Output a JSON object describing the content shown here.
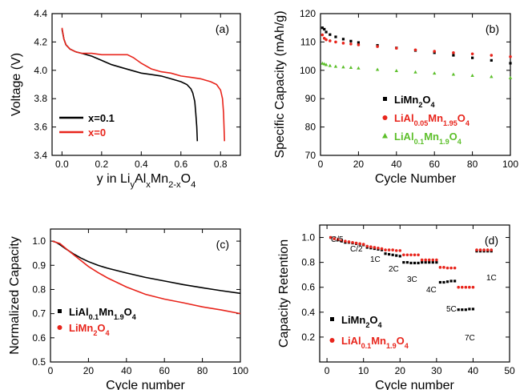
{
  "chart_data": [
    {
      "id": "a",
      "type": "line",
      "panel_label": "(a)",
      "xlabel": "y in Li",
      "xlabel_parts": {
        "li": "y",
        "al": "x",
        "mn": "2-x",
        "o": "4"
      },
      "ylabel": "Voltage (V)",
      "xlim": [
        -0.05,
        0.9
      ],
      "ylim": [
        3.4,
        4.4
      ],
      "xticks": [
        "0.0",
        "0.2",
        "0.4",
        "0.6",
        "0.8"
      ],
      "yticks": [
        "3.4",
        "3.6",
        "3.8",
        "4.0",
        "4.2",
        "4.4"
      ],
      "legend_position": "bottom-left",
      "series": [
        {
          "name": "x=0.1",
          "color": "#000000",
          "x": [
            0.0,
            0.01,
            0.02,
            0.04,
            0.07,
            0.1,
            0.15,
            0.2,
            0.25,
            0.3,
            0.35,
            0.4,
            0.45,
            0.5,
            0.55,
            0.6,
            0.63,
            0.65,
            0.66,
            0.67,
            0.675,
            0.68,
            0.683
          ],
          "y": [
            4.29,
            4.22,
            4.18,
            4.15,
            4.13,
            4.12,
            4.1,
            4.07,
            4.04,
            4.02,
            4.0,
            3.98,
            3.97,
            3.96,
            3.94,
            3.92,
            3.9,
            3.87,
            3.84,
            3.78,
            3.7,
            3.6,
            3.5
          ]
        },
        {
          "name": "x=0",
          "color": "#e8251c",
          "x": [
            0.0,
            0.01,
            0.02,
            0.04,
            0.07,
            0.1,
            0.15,
            0.2,
            0.25,
            0.3,
            0.33,
            0.36,
            0.4,
            0.45,
            0.5,
            0.55,
            0.6,
            0.65,
            0.7,
            0.75,
            0.78,
            0.8,
            0.81,
            0.815,
            0.82
          ],
          "y": [
            4.3,
            4.22,
            4.18,
            4.15,
            4.13,
            4.12,
            4.12,
            4.11,
            4.11,
            4.11,
            4.11,
            4.09,
            4.05,
            4.01,
            3.99,
            3.98,
            3.96,
            3.95,
            3.94,
            3.92,
            3.9,
            3.86,
            3.8,
            3.7,
            3.5
          ]
        }
      ]
    },
    {
      "id": "b",
      "type": "scatter",
      "panel_label": "(b)",
      "xlabel": "Cycle Number",
      "ylabel": "Specific Capacity (mAh/g)",
      "xlim": [
        0,
        100
      ],
      "ylim": [
        70,
        120
      ],
      "xticks": [
        "0",
        "20",
        "40",
        "60",
        "80",
        "100"
      ],
      "yticks": [
        "70",
        "80",
        "90",
        "100",
        "110",
        "120"
      ],
      "legend_position": "center",
      "series": [
        {
          "name": "LiMn2O4",
          "label_parts": [
            "LiMn",
            "2",
            "O",
            "4",
            ""
          ],
          "color": "#000000",
          "marker": "square",
          "x": [
            1,
            2,
            3,
            5,
            8,
            12,
            16,
            20,
            30,
            40,
            50,
            60,
            70,
            80,
            90,
            100
          ],
          "y": [
            115,
            114.5,
            113.5,
            112.6,
            111.8,
            111.0,
            110.3,
            109.8,
            108.8,
            107.9,
            107.0,
            106.2,
            105.3,
            104.4,
            103.5,
            102.5
          ]
        },
        {
          "name": "LiAl0.05Mn1.95O4",
          "label_parts": [
            "LiAl",
            "0.05",
            "Mn",
            "1.95",
            "O",
            "4"
          ],
          "color": "#e8251c",
          "marker": "circle",
          "x": [
            1,
            2,
            3,
            5,
            8,
            12,
            16,
            20,
            30,
            40,
            50,
            60,
            70,
            80,
            90,
            100
          ],
          "y": [
            112.5,
            111.3,
            110.8,
            110.4,
            110.0,
            109.6,
            109.3,
            109.0,
            108.4,
            107.8,
            107.2,
            106.7,
            106.2,
            105.8,
            105.3,
            104.8
          ]
        },
        {
          "name": "LiAl0.1Mn1.9O4",
          "label_parts": [
            "LiAl",
            "0.1",
            "Mn",
            "1.9",
            "O",
            "4"
          ],
          "color": "#5cbf2a",
          "marker": "triangle",
          "x": [
            1,
            2,
            3,
            5,
            8,
            12,
            16,
            20,
            30,
            40,
            50,
            60,
            70,
            80,
            90,
            100
          ],
          "y": [
            102.5,
            102.3,
            102.0,
            101.7,
            101.4,
            101.2,
            101.0,
            100.8,
            100.3,
            99.9,
            99.4,
            99.0,
            98.6,
            98.2,
            97.8,
            97.4
          ]
        }
      ]
    },
    {
      "id": "c",
      "type": "line",
      "panel_label": "(c)",
      "xlabel": "Cycle number",
      "ylabel": "Normalized Capacity",
      "xlim": [
        0,
        100
      ],
      "ylim": [
        0.5,
        1.05
      ],
      "xticks": [
        "0",
        "20",
        "40",
        "60",
        "80",
        "100"
      ],
      "yticks": [
        "0.5",
        "0.6",
        "0.7",
        "0.8",
        "0.9",
        "1.0"
      ],
      "legend_position": "bottom-left",
      "series": [
        {
          "name": "LiAl0.1Mn1.9O4",
          "label_parts": [
            "LiAl",
            "0.1",
            "Mn",
            "1.9",
            "O",
            "4"
          ],
          "color": "#000000",
          "marker": "square",
          "x": [
            1,
            3,
            5,
            8,
            12,
            16,
            20,
            25,
            30,
            40,
            50,
            60,
            70,
            80,
            90,
            100
          ],
          "y": [
            1.0,
            0.995,
            0.985,
            0.968,
            0.948,
            0.93,
            0.915,
            0.9,
            0.888,
            0.868,
            0.85,
            0.835,
            0.82,
            0.807,
            0.795,
            0.784
          ]
        },
        {
          "name": "LiMn2O4",
          "label_parts": [
            "LiMn",
            "2",
            "O",
            "4",
            ""
          ],
          "color": "#e8251c",
          "marker": "circle",
          "x": [
            1,
            3,
            5,
            8,
            12,
            16,
            20,
            25,
            30,
            40,
            50,
            60,
            70,
            80,
            90,
            100
          ],
          "y": [
            1.0,
            0.995,
            0.99,
            0.97,
            0.945,
            0.92,
            0.895,
            0.87,
            0.848,
            0.81,
            0.78,
            0.76,
            0.745,
            0.728,
            0.715,
            0.7
          ]
        }
      ]
    },
    {
      "id": "d",
      "type": "scatter",
      "panel_label": "(d)",
      "xlabel": "Cycle number",
      "ylabel": "Capacity Retention",
      "xlim": [
        -2,
        50
      ],
      "ylim": [
        0.0,
        1.1
      ],
      "xticks": [
        "0",
        "10",
        "20",
        "30",
        "40",
        "50"
      ],
      "yticks": [
        "0.2",
        "0.4",
        "0.6",
        "0.8",
        "1.0"
      ],
      "legend_position": "bottom-left",
      "rate_labels": [
        "C/5",
        "C/2",
        "1C",
        "2C",
        "3C",
        "4C",
        "5C",
        "7C",
        "1C"
      ],
      "series": [
        {
          "name": "LiMn2O4",
          "label_parts": [
            "LiMn",
            "2",
            "O",
            "4",
            ""
          ],
          "color": "#000000",
          "marker": "square",
          "x": [
            1,
            2,
            3,
            4,
            5,
            6,
            7,
            8,
            9,
            10,
            11,
            12,
            13,
            14,
            15,
            16,
            17,
            18,
            19,
            20,
            21,
            22,
            23,
            24,
            25,
            26,
            27,
            28,
            29,
            30,
            31,
            32,
            33,
            34,
            35,
            36,
            37,
            38,
            39,
            40,
            41,
            42,
            43,
            44,
            45
          ],
          "y": [
            1.0,
            0.99,
            0.98,
            0.97,
            0.96,
            0.96,
            0.955,
            0.95,
            0.945,
            0.94,
            0.92,
            0.915,
            0.91,
            0.905,
            0.9,
            0.87,
            0.865,
            0.86,
            0.855,
            0.85,
            0.8,
            0.8,
            0.795,
            0.795,
            0.795,
            0.8,
            0.8,
            0.8,
            0.8,
            0.8,
            0.64,
            0.64,
            0.645,
            0.65,
            0.65,
            0.42,
            0.42,
            0.42,
            0.425,
            0.425,
            0.89,
            0.89,
            0.89,
            0.89,
            0.89
          ]
        },
        {
          "name": "LiAl0.1Mn1.9O4",
          "label_parts": [
            "LiAl",
            "0.1",
            "Mn",
            "1.9",
            "O",
            "4"
          ],
          "color": "#e8251c",
          "marker": "circle",
          "x": [
            1,
            2,
            3,
            4,
            5,
            6,
            7,
            8,
            9,
            10,
            11,
            12,
            13,
            14,
            15,
            16,
            17,
            18,
            19,
            20,
            21,
            22,
            23,
            24,
            25,
            26,
            27,
            28,
            29,
            30,
            31,
            32,
            33,
            34,
            35,
            36,
            37,
            38,
            39,
            40,
            41,
            42,
            43,
            44,
            45
          ],
          "y": [
            1.0,
            0.99,
            0.985,
            0.975,
            0.97,
            0.965,
            0.96,
            0.955,
            0.95,
            0.945,
            0.93,
            0.925,
            0.92,
            0.915,
            0.91,
            0.9,
            0.9,
            0.9,
            0.895,
            0.895,
            0.86,
            0.86,
            0.86,
            0.86,
            0.86,
            0.82,
            0.82,
            0.82,
            0.82,
            0.82,
            0.76,
            0.76,
            0.755,
            0.755,
            0.755,
            0.6,
            0.6,
            0.6,
            0.6,
            0.6,
            0.9,
            0.9,
            0.9,
            0.9,
            0.9
          ]
        }
      ]
    }
  ]
}
